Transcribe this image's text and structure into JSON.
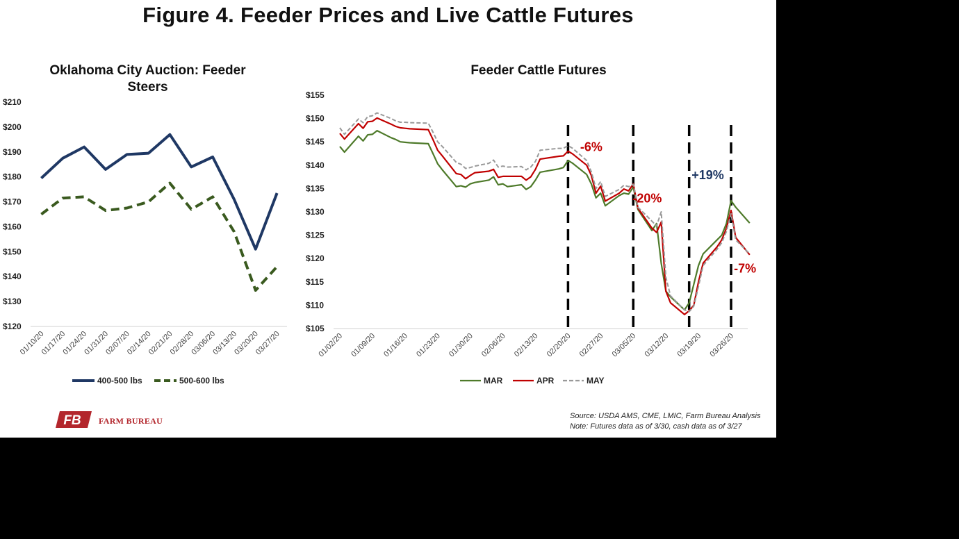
{
  "figure_title": "Figure 4. Feeder Prices and Live Cattle Futures",
  "source_lines": [
    "Source:  USDA AMS, CME, LMIC, Farm Bureau Analysis",
    "Note: Futures data as of 3/30, cash data as of 3/27"
  ],
  "logo": {
    "icon": "farm-bureau-logo-icon",
    "text": "FARM BUREAU",
    "mark_text": "FB",
    "color": "#b3262c"
  },
  "chart_data": [
    {
      "type": "line",
      "title": "Oklahoma City Auction: Feeder Steers",
      "xlabel": "",
      "ylabel": "",
      "ylim": [
        120,
        210
      ],
      "yticks": [
        "$120",
        "$130",
        "$140",
        "$150",
        "$160",
        "$170",
        "$180",
        "$190",
        "$200",
        "$210"
      ],
      "categories": [
        "01/10/20",
        "01/17/20",
        "01/24/20",
        "01/31/20",
        "02/07/20",
        "02/14/20",
        "02/21/20",
        "02/28/20",
        "03/06/20",
        "03/13/20",
        "03/20/20",
        "03/27/20"
      ],
      "legend_position": "bottom",
      "grid": false,
      "series": [
        {
          "name": "400-500 lbs",
          "color": "#1f3864",
          "style": "solid",
          "values": [
            179.5,
            187.5,
            192,
            183,
            189,
            189.5,
            197,
            184,
            188,
            171,
            151,
            173.5
          ]
        },
        {
          "name": "500-600 lbs",
          "color": "#3a5a1f",
          "style": "dashed",
          "values": [
            165,
            171.5,
            172,
            166.5,
            167.5,
            170,
            177.5,
            167,
            172,
            158,
            134.5,
            144
          ]
        }
      ]
    },
    {
      "type": "line",
      "title": "Feeder Cattle Futures",
      "xlabel": "",
      "ylabel": "",
      "ylim": [
        105,
        155
      ],
      "yticks": [
        "$105",
        "$110",
        "$115",
        "$120",
        "$125",
        "$130",
        "$135",
        "$140",
        "$145",
        "$150",
        "$155"
      ],
      "x_range": [
        "01/02/20",
        "03/30/20"
      ],
      "xticks": [
        "01/02/20",
        "01/09/20",
        "01/16/20",
        "01/23/20",
        "01/30/20",
        "02/06/20",
        "02/13/20",
        "02/20/20",
        "02/27/20",
        "03/05/20",
        "03/12/20",
        "03/19/20",
        "03/26/20"
      ],
      "legend_position": "bottom",
      "grid": false,
      "vlines": [
        "02/20/20",
        "03/05/20",
        "03/17/20",
        "03/26/20"
      ],
      "annotations": [
        {
          "text": "-6%",
          "color": "#c00000",
          "x": "02/25/20",
          "y": 143
        },
        {
          "text": "-20%",
          "color": "#c00000",
          "x": "03/08/20",
          "y": 132
        },
        {
          "text": "+19%",
          "color": "#1f3864",
          "x": "03/21/20",
          "y": 137
        },
        {
          "text": "-7%",
          "color": "#c00000",
          "x": "03/29/20",
          "y": 117
        }
      ],
      "series": [
        {
          "name": "MAR",
          "color": "#4e7a2a",
          "style": "solid",
          "x": [
            "01/02/20",
            "01/03/20",
            "01/06/20",
            "01/07/20",
            "01/08/20",
            "01/09/20",
            "01/10/20",
            "01/13/20",
            "01/14/20",
            "01/15/20",
            "01/16/20",
            "01/17/20",
            "01/21/20",
            "01/22/20",
            "01/23/20",
            "01/24/20",
            "01/27/20",
            "01/28/20",
            "01/29/20",
            "01/30/20",
            "01/31/20",
            "02/03/20",
            "02/04/20",
            "02/05/20",
            "02/06/20",
            "02/07/20",
            "02/10/20",
            "02/11/20",
            "02/12/20",
            "02/13/20",
            "02/14/20",
            "02/18/20",
            "02/19/20",
            "02/20/20",
            "02/21/20",
            "02/24/20",
            "02/25/20",
            "02/26/20",
            "02/27/20",
            "02/28/20",
            "03/02/20",
            "03/03/20",
            "03/04/20",
            "03/05/20",
            "03/06/20",
            "03/09/20",
            "03/10/20",
            "03/11/20",
            "03/12/20",
            "03/13/20",
            "03/16/20",
            "03/17/20",
            "03/18/20",
            "03/19/20",
            "03/20/20",
            "03/23/20",
            "03/24/20",
            "03/25/20",
            "03/26/20",
            "03/27/20",
            "03/30/20"
          ],
          "values": [
            144,
            142.8,
            146.2,
            145.2,
            146.5,
            146.6,
            147.4,
            145.9,
            145.5,
            145,
            144.9,
            144.8,
            144.6,
            142.5,
            140.3,
            139,
            135.4,
            135.6,
            135.3,
            136,
            136.3,
            136.8,
            137.5,
            135.8,
            136,
            135.4,
            135.8,
            134.8,
            135.4,
            136.8,
            138.5,
            139.2,
            139.5,
            141,
            140.4,
            138,
            136,
            133,
            134,
            131.3,
            133.5,
            134,
            133.8,
            135.3,
            130.5,
            126,
            127.5,
            119,
            113,
            111.8,
            109,
            110.5,
            114.5,
            118.5,
            121,
            124,
            125,
            127.5,
            132.4,
            131,
            127.6
          ]
        },
        {
          "name": "APR",
          "color": "#c00000",
          "style": "solid",
          "x": [
            "01/02/20",
            "01/03/20",
            "01/06/20",
            "01/07/20",
            "01/08/20",
            "01/09/20",
            "01/10/20",
            "01/13/20",
            "01/14/20",
            "01/15/20",
            "01/16/20",
            "01/17/20",
            "01/21/20",
            "01/22/20",
            "01/23/20",
            "01/24/20",
            "01/27/20",
            "01/28/20",
            "01/29/20",
            "01/30/20",
            "01/31/20",
            "02/03/20",
            "02/04/20",
            "02/05/20",
            "02/06/20",
            "02/07/20",
            "02/10/20",
            "02/11/20",
            "02/12/20",
            "02/13/20",
            "02/14/20",
            "02/18/20",
            "02/19/20",
            "02/20/20",
            "02/21/20",
            "02/24/20",
            "02/25/20",
            "02/26/20",
            "02/27/20",
            "02/28/20",
            "03/02/20",
            "03/03/20",
            "03/04/20",
            "03/05/20",
            "03/06/20",
            "03/09/20",
            "03/10/20",
            "03/11/20",
            "03/12/20",
            "03/13/20",
            "03/16/20",
            "03/17/20",
            "03/18/20",
            "03/19/20",
            "03/20/20",
            "03/23/20",
            "03/24/20",
            "03/25/20",
            "03/26/20",
            "03/27/20",
            "03/30/20"
          ],
          "values": [
            146.8,
            145.6,
            148.9,
            147.9,
            149.3,
            149.4,
            150.1,
            148.8,
            148.3,
            148,
            147.9,
            147.8,
            147.6,
            145.5,
            143.2,
            142,
            138.2,
            138,
            137.1,
            137.8,
            138.4,
            138.7,
            139.1,
            137.4,
            137.6,
            137.6,
            137.6,
            136.8,
            137.5,
            139.1,
            141.3,
            141.9,
            142,
            143,
            142.4,
            140,
            137.8,
            134,
            135.5,
            132.3,
            134,
            134.9,
            134.5,
            136,
            130.8,
            126.5,
            125.6,
            127.8,
            113,
            110.5,
            108,
            108.8,
            110,
            115,
            119,
            122.5,
            124,
            126.5,
            130.3,
            124.5,
            120.8
          ]
        },
        {
          "name": "MAY",
          "color": "#999999",
          "style": "dashed",
          "x": [
            "01/02/20",
            "01/03/20",
            "01/06/20",
            "01/07/20",
            "01/08/20",
            "01/09/20",
            "01/10/20",
            "01/13/20",
            "01/14/20",
            "01/15/20",
            "01/16/20",
            "01/17/20",
            "01/21/20",
            "01/22/20",
            "01/23/20",
            "01/24/20",
            "01/27/20",
            "01/28/20",
            "01/29/20",
            "01/30/20",
            "01/31/20",
            "02/03/20",
            "02/04/20",
            "02/05/20",
            "02/06/20",
            "02/07/20",
            "02/10/20",
            "02/11/20",
            "02/12/20",
            "02/13/20",
            "02/14/20",
            "02/18/20",
            "02/19/20",
            "02/20/20",
            "02/21/20",
            "02/24/20",
            "02/25/20",
            "02/26/20",
            "02/27/20",
            "02/28/20",
            "03/02/20",
            "03/03/20",
            "03/04/20",
            "03/05/20",
            "03/06/20",
            "03/09/20",
            "03/10/20",
            "03/11/20",
            "03/12/20",
            "03/13/20",
            "03/16/20",
            "03/17/20",
            "03/18/20",
            "03/19/20",
            "03/20/20",
            "03/23/20",
            "03/24/20",
            "03/25/20",
            "03/26/20",
            "03/27/20",
            "03/30/20"
          ],
          "values": [
            148,
            146.6,
            149.9,
            149.1,
            150.4,
            150.6,
            151.2,
            150,
            149.5,
            149.2,
            149.2,
            149.1,
            149,
            147.1,
            145,
            144,
            140.6,
            140.2,
            139.3,
            139.5,
            139.8,
            140.4,
            141.1,
            139.6,
            139.8,
            139.6,
            139.7,
            139,
            139.6,
            140.8,
            143.2,
            143.6,
            143.6,
            144.2,
            143.6,
            141,
            138.6,
            135,
            136.5,
            133.3,
            134.8,
            135.7,
            135.4,
            135.9,
            131,
            128,
            127,
            130,
            116,
            112,
            109,
            108.6,
            109.8,
            114,
            118.5,
            122,
            123.4,
            125.8,
            129.6,
            124,
            121
          ]
        }
      ]
    }
  ]
}
